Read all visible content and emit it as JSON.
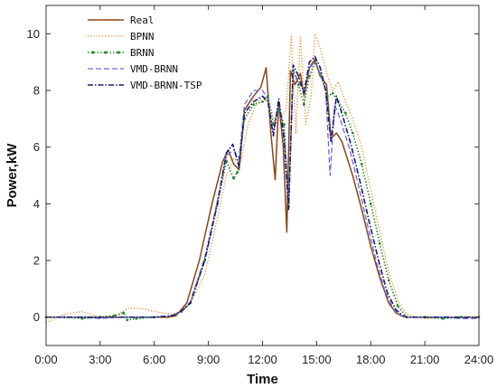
{
  "chart_data": {
    "type": "line",
    "title": "",
    "xlabel": "Time",
    "ylabel": "Power,kW",
    "xlim": [
      0,
      24
    ],
    "ylim": [
      -1,
      11
    ],
    "xticks": [
      0,
      3,
      6,
      9,
      12,
      15,
      18,
      21,
      24
    ],
    "xtick_labels": [
      "0:00",
      "3:00",
      "6:00",
      "9:00",
      "12:00",
      "15:00",
      "18:00",
      "21:00",
      "24:00"
    ],
    "yticks": [
      0,
      2,
      4,
      6,
      8,
      10
    ],
    "ytick_labels": [
      "0",
      "2",
      "4",
      "6",
      "8",
      "10"
    ],
    "grid": false,
    "legend_position": "top-left",
    "series": [
      {
        "name": "Real",
        "color": "#8B4513",
        "style": "solid",
        "points": [
          [
            0,
            0
          ],
          [
            1,
            0
          ],
          [
            2,
            0
          ],
          [
            3,
            0
          ],
          [
            4,
            0
          ],
          [
            5,
            0
          ],
          [
            6,
            0
          ],
          [
            6.8,
            0
          ],
          [
            7.2,
            0.05
          ],
          [
            7.8,
            0.5
          ],
          [
            8.5,
            2
          ],
          [
            9.2,
            4
          ],
          [
            9.8,
            5.5
          ],
          [
            10.1,
            5.9
          ],
          [
            10.4,
            5.4
          ],
          [
            10.7,
            5.2
          ],
          [
            11,
            7.3
          ],
          [
            11.5,
            7.8
          ],
          [
            11.9,
            8.1
          ],
          [
            12.2,
            8.8
          ],
          [
            12.45,
            6.6
          ],
          [
            12.7,
            4.85
          ],
          [
            12.9,
            7.6
          ],
          [
            13.15,
            6
          ],
          [
            13.35,
            3
          ],
          [
            13.55,
            8.7
          ],
          [
            13.8,
            8.2
          ],
          [
            14.1,
            8.6
          ],
          [
            14.3,
            7.8
          ],
          [
            14.6,
            8.8
          ],
          [
            14.9,
            9.1
          ],
          [
            15.2,
            8.5
          ],
          [
            15.55,
            8.2
          ],
          [
            15.8,
            6.3
          ],
          [
            16.1,
            6.5
          ],
          [
            16.4,
            6.2
          ],
          [
            17,
            5
          ],
          [
            17.5,
            3.8
          ],
          [
            18,
            2.5
          ],
          [
            18.5,
            1.4
          ],
          [
            19,
            0.5
          ],
          [
            19.4,
            0.15
          ],
          [
            19.7,
            0.05
          ],
          [
            20,
            0
          ],
          [
            21,
            0
          ],
          [
            22,
            0
          ],
          [
            23,
            0
          ],
          [
            24,
            0
          ]
        ]
      },
      {
        "name": "BPNN",
        "color": "#F08A24",
        "style": "dotted",
        "points": [
          [
            0,
            -0.2
          ],
          [
            0.5,
            -0.05
          ],
          [
            1,
            0.1
          ],
          [
            1.5,
            0.15
          ],
          [
            2,
            0.2
          ],
          [
            2.5,
            0.1
          ],
          [
            3,
            0
          ],
          [
            3.5,
            0.05
          ],
          [
            4,
            0.1
          ],
          [
            4.5,
            0.3
          ],
          [
            5,
            0.32
          ],
          [
            5.5,
            0.28
          ],
          [
            6,
            0.2
          ],
          [
            6.5,
            0.15
          ],
          [
            7,
            0.1
          ],
          [
            7.5,
            0.2
          ],
          [
            8,
            0.5
          ],
          [
            8.8,
            1.5
          ],
          [
            9.5,
            3.5
          ],
          [
            10,
            5
          ],
          [
            10.4,
            5.6
          ],
          [
            10.8,
            5.5
          ],
          [
            11.2,
            6.8
          ],
          [
            11.7,
            7.6
          ],
          [
            12.1,
            7.8
          ],
          [
            12.4,
            7.5
          ],
          [
            12.7,
            6.8
          ],
          [
            13,
            7
          ],
          [
            13.3,
            7.3
          ],
          [
            13.6,
            9.9
          ],
          [
            13.85,
            6.5
          ],
          [
            14.1,
            9.9
          ],
          [
            14.4,
            6.8
          ],
          [
            14.7,
            7.8
          ],
          [
            14.9,
            10
          ],
          [
            15.2,
            9.5
          ],
          [
            15.6,
            8.5
          ],
          [
            15.9,
            8
          ],
          [
            16.2,
            8.3
          ],
          [
            16.6,
            7.6
          ],
          [
            17,
            7
          ],
          [
            17.5,
            6
          ],
          [
            18,
            4.5
          ],
          [
            18.5,
            3
          ],
          [
            19,
            1.6
          ],
          [
            19.5,
            0.6
          ],
          [
            20,
            0.1
          ],
          [
            20.5,
            0
          ],
          [
            21,
            -0.05
          ],
          [
            22,
            0
          ],
          [
            23,
            0
          ],
          [
            24,
            0
          ]
        ]
      },
      {
        "name": "BRNN",
        "color": "#1E8C1E",
        "style": "dotted-marker",
        "points": [
          [
            0,
            0
          ],
          [
            1,
            0
          ],
          [
            2,
            -0.05
          ],
          [
            3,
            0
          ],
          [
            3.8,
            0.05
          ],
          [
            4.3,
            0.15
          ],
          [
            4.5,
            -0.1
          ],
          [
            5,
            -0.05
          ],
          [
            6,
            0
          ],
          [
            7,
            0.05
          ],
          [
            7.5,
            0.2
          ],
          [
            8,
            0.5
          ],
          [
            8.8,
            2
          ],
          [
            9.5,
            4
          ],
          [
            10,
            5.5
          ],
          [
            10.4,
            4.9
          ],
          [
            10.6,
            5.1
          ],
          [
            11,
            7
          ],
          [
            11.5,
            7.5
          ],
          [
            12,
            7.6
          ],
          [
            12.3,
            7.8
          ],
          [
            12.6,
            6.8
          ],
          [
            12.9,
            7.3
          ],
          [
            13.2,
            6.8
          ],
          [
            13.45,
            3.9
          ],
          [
            13.7,
            8.7
          ],
          [
            14,
            8.2
          ],
          [
            14.3,
            7.5
          ],
          [
            14.6,
            8.5
          ],
          [
            14.9,
            9
          ],
          [
            15.2,
            8.6
          ],
          [
            15.6,
            7.8
          ],
          [
            15.9,
            7.9
          ],
          [
            16.2,
            7.6
          ],
          [
            16.6,
            7.2
          ],
          [
            17,
            6.5
          ],
          [
            17.5,
            5.4
          ],
          [
            18,
            4
          ],
          [
            18.5,
            2.6
          ],
          [
            19,
            1.3
          ],
          [
            19.5,
            0.4
          ],
          [
            20,
            0
          ],
          [
            21,
            0
          ],
          [
            22,
            -0.05
          ],
          [
            23,
            0
          ],
          [
            24,
            0
          ]
        ]
      },
      {
        "name": "VMD-BRNN",
        "color": "#6A6AE0",
        "style": "dashed",
        "points": [
          [
            0,
            0
          ],
          [
            1,
            0
          ],
          [
            2,
            0
          ],
          [
            3,
            -0.05
          ],
          [
            4,
            0
          ],
          [
            5,
            0
          ],
          [
            6,
            0
          ],
          [
            7,
            0.05
          ],
          [
            7.5,
            0.2
          ],
          [
            8,
            0.55
          ],
          [
            8.8,
            2.1
          ],
          [
            9.5,
            4.1
          ],
          [
            10,
            5.7
          ],
          [
            10.4,
            5.9
          ],
          [
            10.7,
            5.6
          ],
          [
            11,
            7.5
          ],
          [
            11.5,
            8
          ],
          [
            12,
            8
          ],
          [
            12.3,
            7.7
          ],
          [
            12.6,
            6.5
          ],
          [
            12.9,
            7.6
          ],
          [
            13.2,
            6.5
          ],
          [
            13.45,
            4
          ],
          [
            13.7,
            8.7
          ],
          [
            14,
            8.3
          ],
          [
            14.3,
            8
          ],
          [
            14.6,
            8.8
          ],
          [
            14.9,
            9
          ],
          [
            15.2,
            8.6
          ],
          [
            15.5,
            8
          ],
          [
            15.75,
            5
          ],
          [
            16,
            7.5
          ],
          [
            16.3,
            7
          ],
          [
            16.8,
            6
          ],
          [
            17.3,
            4.7
          ],
          [
            17.8,
            3.3
          ],
          [
            18.3,
            2
          ],
          [
            18.8,
            0.9
          ],
          [
            19.3,
            0.25
          ],
          [
            19.7,
            0.05
          ],
          [
            20,
            0
          ],
          [
            21,
            0
          ],
          [
            22,
            0
          ],
          [
            23,
            -0.05
          ],
          [
            24,
            -0.05
          ]
        ]
      },
      {
        "name": "VMD-BRNN-TSP",
        "color": "#1A1A70",
        "style": "dash-dot",
        "points": [
          [
            0,
            0
          ],
          [
            1,
            0
          ],
          [
            2,
            0
          ],
          [
            3,
            0
          ],
          [
            4,
            0
          ],
          [
            5,
            0
          ],
          [
            6,
            0
          ],
          [
            7,
            0.05
          ],
          [
            7.5,
            0.2
          ],
          [
            8,
            0.5
          ],
          [
            8.8,
            2
          ],
          [
            9.5,
            4
          ],
          [
            10,
            5.8
          ],
          [
            10.35,
            6.1
          ],
          [
            10.7,
            5.3
          ],
          [
            11,
            7.2
          ],
          [
            11.5,
            7.6
          ],
          [
            12,
            7.8
          ],
          [
            12.3,
            7.6
          ],
          [
            12.6,
            6.4
          ],
          [
            12.9,
            7.7
          ],
          [
            13.2,
            6.3
          ],
          [
            13.45,
            3.8
          ],
          [
            13.7,
            8.9
          ],
          [
            14,
            8.5
          ],
          [
            14.3,
            7.9
          ],
          [
            14.6,
            9
          ],
          [
            14.9,
            9.2
          ],
          [
            15.2,
            8.8
          ],
          [
            15.5,
            8
          ],
          [
            15.8,
            6.2
          ],
          [
            16.1,
            7.8
          ],
          [
            16.4,
            7.2
          ],
          [
            16.9,
            6.1
          ],
          [
            17.4,
            4.8
          ],
          [
            17.9,
            3.4
          ],
          [
            18.4,
            2.1
          ],
          [
            18.9,
            0.9
          ],
          [
            19.4,
            0.25
          ],
          [
            19.8,
            0.05
          ],
          [
            20,
            0
          ],
          [
            21,
            0
          ],
          [
            22,
            0
          ],
          [
            23,
            0
          ],
          [
            24,
            0
          ]
        ]
      }
    ]
  }
}
